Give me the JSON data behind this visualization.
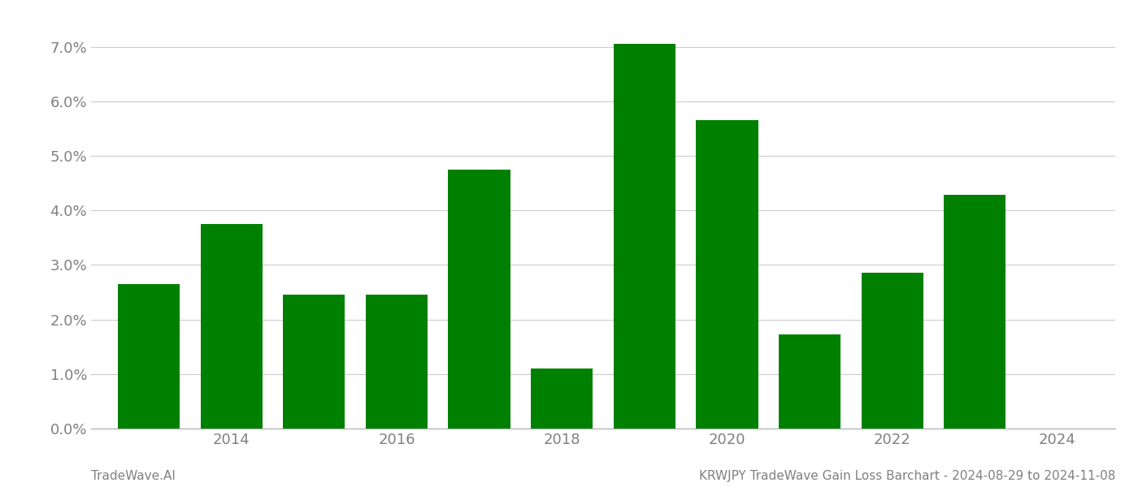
{
  "years": [
    2013,
    2014,
    2015,
    2016,
    2017,
    2018,
    2019,
    2020,
    2021,
    2022,
    2023
  ],
  "values": [
    0.0265,
    0.0375,
    0.0245,
    0.0245,
    0.0475,
    0.011,
    0.0705,
    0.0565,
    0.0172,
    0.0285,
    0.0428
  ],
  "bar_color": "#008000",
  "ylim": [
    0,
    0.075
  ],
  "yticks": [
    0.0,
    0.01,
    0.02,
    0.03,
    0.04,
    0.05,
    0.06,
    0.07
  ],
  "xticks": [
    2014,
    2016,
    2018,
    2020,
    2022,
    2024
  ],
  "xlim": [
    2012.3,
    2024.7
  ],
  "ylabel": "",
  "xlabel": "",
  "footer_left": "TradeWave.AI",
  "footer_right": "KRWJPY TradeWave Gain Loss Barchart - 2024-08-29 to 2024-11-08",
  "background_color": "#ffffff",
  "grid_color": "#cccccc",
  "text_color": "#808080",
  "bar_width": 0.75,
  "tick_fontsize": 13,
  "footer_fontsize": 11
}
